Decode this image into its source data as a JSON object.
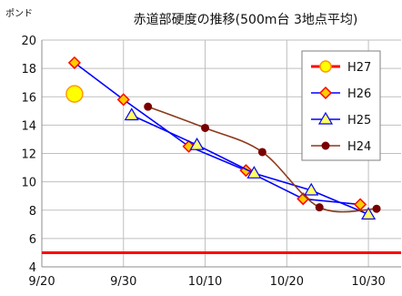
{
  "chart_data": {
    "type": "line",
    "title": "赤道部硬度の推移(500m台 3地点平均)",
    "ylabel": "ポンド",
    "xlabel": "",
    "ylim": [
      4,
      20
    ],
    "yticks": [
      4,
      6,
      8,
      10,
      12,
      14,
      16,
      18,
      20
    ],
    "yticklabels": [
      "4",
      "6",
      "8",
      "10",
      "12",
      "14",
      "16",
      "18",
      "20"
    ],
    "xlim": [
      "9/20",
      "11/3"
    ],
    "xticks": [
      "9/20",
      "9/30",
      "10/10",
      "10/20",
      "10/30"
    ],
    "xticklabels": [
      "9/20",
      "9/30",
      "10/10",
      "10/20",
      "10/30"
    ],
    "grid": true,
    "legend": "top-right",
    "series": [
      {
        "name": "H27",
        "color": "#ff0000",
        "marker": "circle",
        "marker_fill": "#ffff00",
        "marker_stroke": "#ff9900",
        "line": "horizontal",
        "threshold": 5,
        "points": [
          {
            "x": "9/24",
            "y": 16.2
          }
        ]
      },
      {
        "name": "H26",
        "color": "#0000ff",
        "marker": "diamond",
        "marker_fill": "#ffcc00",
        "marker_stroke": "#ff0000",
        "line": "straight",
        "points": [
          {
            "x": "9/24",
            "y": 18.4
          },
          {
            "x": "9/30",
            "y": 15.8
          },
          {
            "x": "10/8",
            "y": 12.5
          },
          {
            "x": "10/15",
            "y": 10.8
          },
          {
            "x": "10/22",
            "y": 8.8
          },
          {
            "x": "10/29",
            "y": 8.4
          }
        ]
      },
      {
        "name": "H25",
        "color": "#0000ff",
        "marker": "triangle",
        "marker_fill": "#ffff66",
        "marker_stroke": "#0000ff",
        "line": "straight",
        "points": [
          {
            "x": "10/1",
            "y": 14.7
          },
          {
            "x": "10/9",
            "y": 12.6
          },
          {
            "x": "10/16",
            "y": 10.6
          },
          {
            "x": "10/23",
            "y": 9.4
          },
          {
            "x": "10/30",
            "y": 7.7
          }
        ]
      },
      {
        "name": "H24",
        "color": "#8b3a1a",
        "marker": "dot",
        "marker_fill": "#7a0000",
        "marker_stroke": "#7a0000",
        "line": "smooth",
        "points": [
          {
            "x": "10/3",
            "y": 15.3
          },
          {
            "x": "10/10",
            "y": 13.8
          },
          {
            "x": "10/17",
            "y": 12.1
          },
          {
            "x": "10/24",
            "y": 8.2
          },
          {
            "x": "10/31",
            "y": 8.1
          }
        ]
      }
    ]
  }
}
